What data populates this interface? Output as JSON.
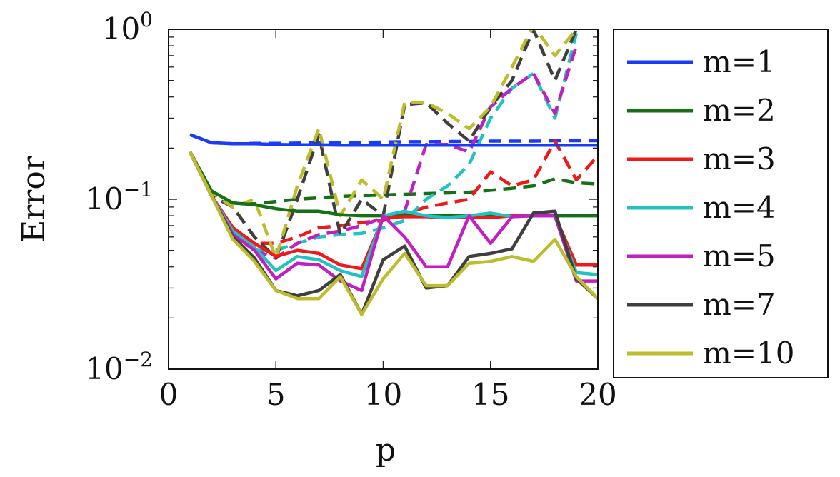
{
  "chart_data": {
    "type": "line",
    "title": "",
    "xlabel": "p",
    "ylabel": "Error",
    "xlim": [
      0,
      20
    ],
    "ylim": [
      0.01,
      1
    ],
    "yscale": "log",
    "grid": false,
    "legend_position": "outside-right",
    "x_ticks": [
      "0",
      "5",
      "10",
      "15",
      "20"
    ],
    "y_ticks": [
      {
        "base": "10",
        "exp": "−2",
        "value": 0.01
      },
      {
        "base": "10",
        "exp": "−1",
        "value": 0.1
      },
      {
        "base": "10",
        "exp": "0",
        "value": 1
      }
    ],
    "x": [
      1,
      2,
      3,
      4,
      5,
      6,
      7,
      8,
      9,
      10,
      11,
      12,
      13,
      14,
      15,
      16,
      17,
      18,
      19,
      20
    ],
    "series": [
      {
        "name": "m=1",
        "color": "#1a3cf5",
        "style": "solid",
        "values": [
          0.24,
          0.215,
          0.212,
          0.212,
          0.21,
          0.209,
          0.209,
          0.208,
          0.208,
          0.208,
          0.208,
          0.208,
          0.208,
          0.208,
          0.208,
          0.208,
          0.208,
          0.208,
          0.208,
          0.208
        ]
      },
      {
        "name": "m=1",
        "color": "#1a3cf5",
        "style": "dashed",
        "legend": false,
        "values": [
          0.24,
          0.215,
          0.212,
          0.213,
          0.213,
          0.214,
          0.215,
          0.215,
          0.216,
          0.217,
          0.218,
          0.218,
          0.219,
          0.219,
          0.22,
          0.22,
          0.22,
          0.221,
          0.221,
          0.221
        ]
      },
      {
        "name": "m=2",
        "color": "#167016",
        "style": "solid",
        "values": [
          0.19,
          0.112,
          0.095,
          0.093,
          0.088,
          0.085,
          0.085,
          0.081,
          0.08,
          0.08,
          0.08,
          0.08,
          0.08,
          0.08,
          0.08,
          0.08,
          0.08,
          0.08,
          0.08,
          0.08
        ]
      },
      {
        "name": "m=2",
        "color": "#167016",
        "style": "dashed",
        "legend": false,
        "values": [
          0.19,
          0.112,
          0.095,
          0.094,
          0.097,
          0.1,
          0.102,
          0.104,
          0.105,
          0.106,
          0.107,
          0.108,
          0.109,
          0.11,
          0.113,
          0.116,
          0.12,
          0.132,
          0.125,
          0.123
        ]
      },
      {
        "name": "m=3",
        "color": "#f01818",
        "style": "solid",
        "values": [
          0.19,
          0.105,
          0.068,
          0.055,
          0.046,
          0.05,
          0.048,
          0.041,
          0.039,
          0.078,
          0.079,
          0.079,
          0.078,
          0.078,
          0.078,
          0.08,
          0.08,
          0.08,
          0.041,
          0.041
        ]
      },
      {
        "name": "m=3",
        "color": "#f01818",
        "style": "dashed",
        "legend": false,
        "values": [
          0.19,
          0.105,
          0.068,
          0.055,
          0.055,
          0.06,
          0.068,
          0.07,
          0.073,
          0.075,
          0.082,
          0.09,
          0.095,
          0.1,
          0.145,
          0.12,
          0.13,
          0.22,
          0.13,
          0.18
        ]
      },
      {
        "name": "m=4",
        "color": "#22c2c2",
        "style": "solid",
        "values": [
          0.19,
          0.105,
          0.065,
          0.052,
          0.038,
          0.046,
          0.044,
          0.038,
          0.035,
          0.08,
          0.085,
          0.08,
          0.078,
          0.08,
          0.083,
          0.079,
          0.08,
          0.08,
          0.037,
          0.036
        ]
      },
      {
        "name": "m=4",
        "color": "#22c2c2",
        "style": "dashed",
        "legend": false,
        "values": [
          0.19,
          0.105,
          0.065,
          0.05,
          0.05,
          0.055,
          0.06,
          0.062,
          0.063,
          0.068,
          0.075,
          0.1,
          0.12,
          0.16,
          0.3,
          0.45,
          0.55,
          0.3,
          0.95,
          null
        ]
      },
      {
        "name": "m=5",
        "color": "#c21fc2",
        "style": "solid",
        "values": [
          0.19,
          0.105,
          0.062,
          0.05,
          0.034,
          0.042,
          0.041,
          0.033,
          0.029,
          0.08,
          0.06,
          0.04,
          0.04,
          0.08,
          0.055,
          0.079,
          0.08,
          0.08,
          0.033,
          0.033
        ]
      },
      {
        "name": "m=5",
        "color": "#c21fc2",
        "style": "dashed",
        "legend": false,
        "values": [
          0.19,
          0.105,
          0.062,
          0.05,
          0.045,
          0.055,
          0.062,
          0.065,
          0.07,
          0.078,
          0.085,
          0.21,
          0.21,
          0.19,
          0.35,
          0.45,
          0.55,
          0.32,
          0.8,
          null
        ]
      },
      {
        "name": "m=7",
        "color": "#3f3f3f",
        "style": "solid",
        "values": [
          0.19,
          0.105,
          0.06,
          0.045,
          0.029,
          0.027,
          0.029,
          0.036,
          0.021,
          0.044,
          0.053,
          0.03,
          0.031,
          0.046,
          0.048,
          0.051,
          0.083,
          0.085,
          0.034,
          0.026
        ]
      },
      {
        "name": "m=7",
        "color": "#3f3f3f",
        "style": "dashed",
        "legend": false,
        "values": [
          0.19,
          0.105,
          0.09,
          0.06,
          0.045,
          0.1,
          0.24,
          0.062,
          0.1,
          0.08,
          0.36,
          0.37,
          0.28,
          0.22,
          0.35,
          0.5,
          1.0,
          0.5,
          1.0,
          null
        ]
      },
      {
        "name": "m=10",
        "color": "#bcbc2c",
        "style": "solid",
        "values": [
          0.19,
          0.105,
          0.058,
          0.043,
          0.029,
          0.026,
          0.026,
          0.035,
          0.021,
          0.034,
          0.048,
          0.031,
          0.031,
          0.042,
          0.043,
          0.046,
          0.043,
          0.058,
          0.035,
          0.026
        ]
      },
      {
        "name": "m=10",
        "color": "#bcbc2c",
        "style": "dashed",
        "legend": false,
        "values": [
          0.19,
          0.11,
          0.09,
          0.1,
          0.045,
          0.12,
          0.26,
          0.08,
          0.13,
          0.1,
          0.37,
          0.37,
          0.32,
          0.26,
          0.35,
          0.6,
          1.05,
          0.7,
          1.0,
          null
        ]
      }
    ]
  }
}
